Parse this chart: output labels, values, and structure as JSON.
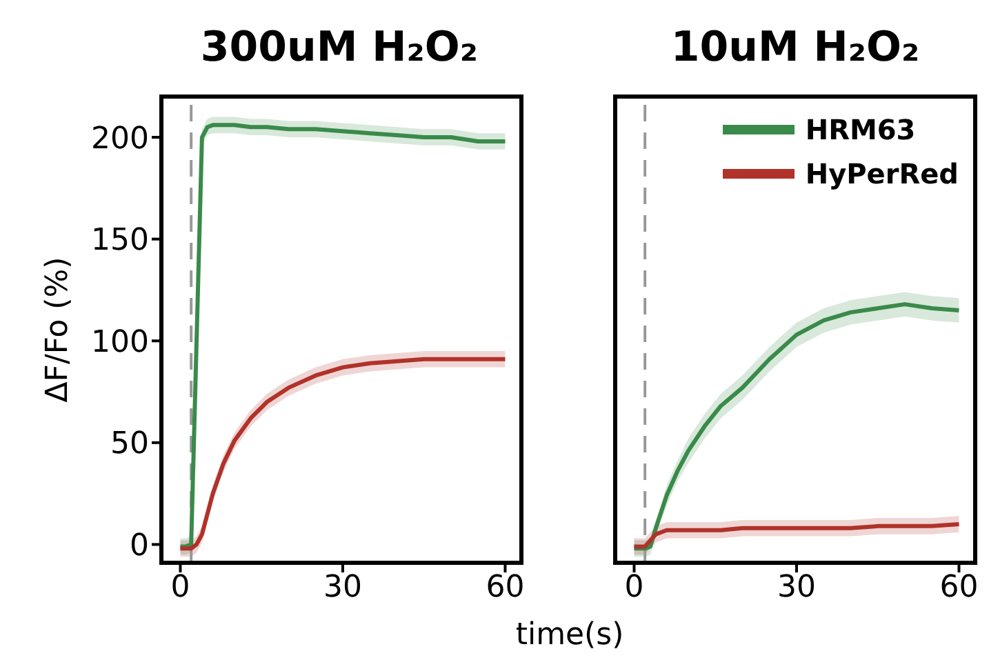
{
  "chart_data": [
    {
      "type": "line",
      "title": "300uM H₂O₂",
      "xlabel": "time(s)",
      "ylabel": "ΔF/Fo (%)",
      "x": [
        0,
        1,
        2,
        3,
        4,
        5,
        6,
        8,
        10,
        13,
        16,
        20,
        25,
        30,
        35,
        40,
        45,
        50,
        55,
        60
      ],
      "xlim": [
        -3.5,
        63
      ],
      "xticks": [
        0,
        30,
        60
      ],
      "ylim": [
        -9,
        220
      ],
      "yticks": [
        0,
        50,
        100,
        150,
        200
      ],
      "line_style": "solid",
      "marker": "none",
      "series": [
        {
          "color": "#3a8a4a",
          "values": [
            -1,
            -1,
            0,
            100,
            200,
            205,
            206,
            206,
            206,
            205,
            205,
            204,
            204,
            203,
            202,
            201,
            200,
            200,
            198,
            198
          ],
          "lower": [
            -5,
            -5,
            -4,
            96,
            196,
            201,
            202,
            202,
            202,
            201,
            201,
            200,
            200,
            199,
            198,
            197,
            196,
            196,
            194,
            194
          ],
          "upper": [
            3,
            3,
            4,
            104,
            204,
            209,
            210,
            210,
            210,
            209,
            209,
            208,
            208,
            207,
            206,
            205,
            204,
            204,
            202,
            202
          ]
        },
        {
          "color": "#b0322a",
          "values": [
            -2,
            -2,
            -2,
            0,
            5,
            15,
            25,
            40,
            51,
            62,
            70,
            77,
            83,
            87,
            89,
            90,
            91,
            91,
            91,
            91
          ],
          "lower": [
            -6,
            -6,
            -6,
            -4,
            1,
            11,
            21,
            36,
            47,
            58,
            66,
            73,
            79,
            83,
            85,
            86,
            87,
            87,
            87,
            87
          ],
          "upper": [
            2,
            2,
            2,
            4,
            9,
            19,
            29,
            44,
            55,
            66,
            74,
            81,
            87,
            91,
            93,
            94,
            95,
            95,
            95,
            95
          ]
        }
      ],
      "ref_lines": [
        {
          "axis": "x",
          "value": 2,
          "color": "#999999",
          "line_style": "dashed"
        }
      ]
    },
    {
      "type": "line",
      "title": "10uM H₂O₂",
      "x": [
        0,
        1,
        2,
        3,
        4,
        5,
        6,
        8,
        10,
        13,
        16,
        20,
        25,
        30,
        35,
        40,
        45,
        50,
        55,
        60
      ],
      "xlim": [
        -3.5,
        63
      ],
      "xticks": [
        0,
        30,
        60
      ],
      "ylim": [
        -9,
        220
      ],
      "tick_labels": "x",
      "legend": "top right",
      "line_style": "solid",
      "marker": "none",
      "series": [
        {
          "name": "HRM63",
          "color": "#3a8a4a",
          "values": [
            -2,
            -2,
            -2,
            -1,
            8,
            16,
            24,
            36,
            46,
            58,
            68,
            77,
            91,
            103,
            110,
            114,
            116,
            118,
            116,
            115
          ],
          "lower": [
            -6,
            -6,
            -6,
            -5,
            4,
            12,
            19,
            31,
            40,
            52,
            62,
            71,
            85,
            97,
            104,
            108,
            110,
            112,
            110,
            109
          ],
          "upper": [
            2,
            2,
            2,
            3,
            12,
            20,
            29,
            41,
            52,
            64,
            74,
            83,
            97,
            109,
            116,
            120,
            122,
            124,
            122,
            121
          ]
        },
        {
          "name": "HyPerRed",
          "color": "#b0322a",
          "values": [
            -1,
            -1,
            -1,
            2,
            5,
            6,
            7,
            7,
            7,
            7,
            7,
            8,
            8,
            8,
            8,
            8,
            9,
            9,
            9,
            10
          ],
          "lower": [
            -5,
            -5,
            -5,
            -2,
            1,
            2,
            3,
            3,
            3,
            3,
            3,
            4,
            4,
            4,
            4,
            4,
            5,
            5,
            5,
            6
          ],
          "upper": [
            3,
            3,
            3,
            6,
            9,
            10,
            11,
            11,
            11,
            11,
            11,
            12,
            12,
            12,
            12,
            12,
            13,
            13,
            13,
            14
          ]
        }
      ],
      "ref_lines": [
        {
          "axis": "x",
          "value": 2,
          "color": "#999999",
          "line_style": "dashed"
        }
      ]
    }
  ]
}
